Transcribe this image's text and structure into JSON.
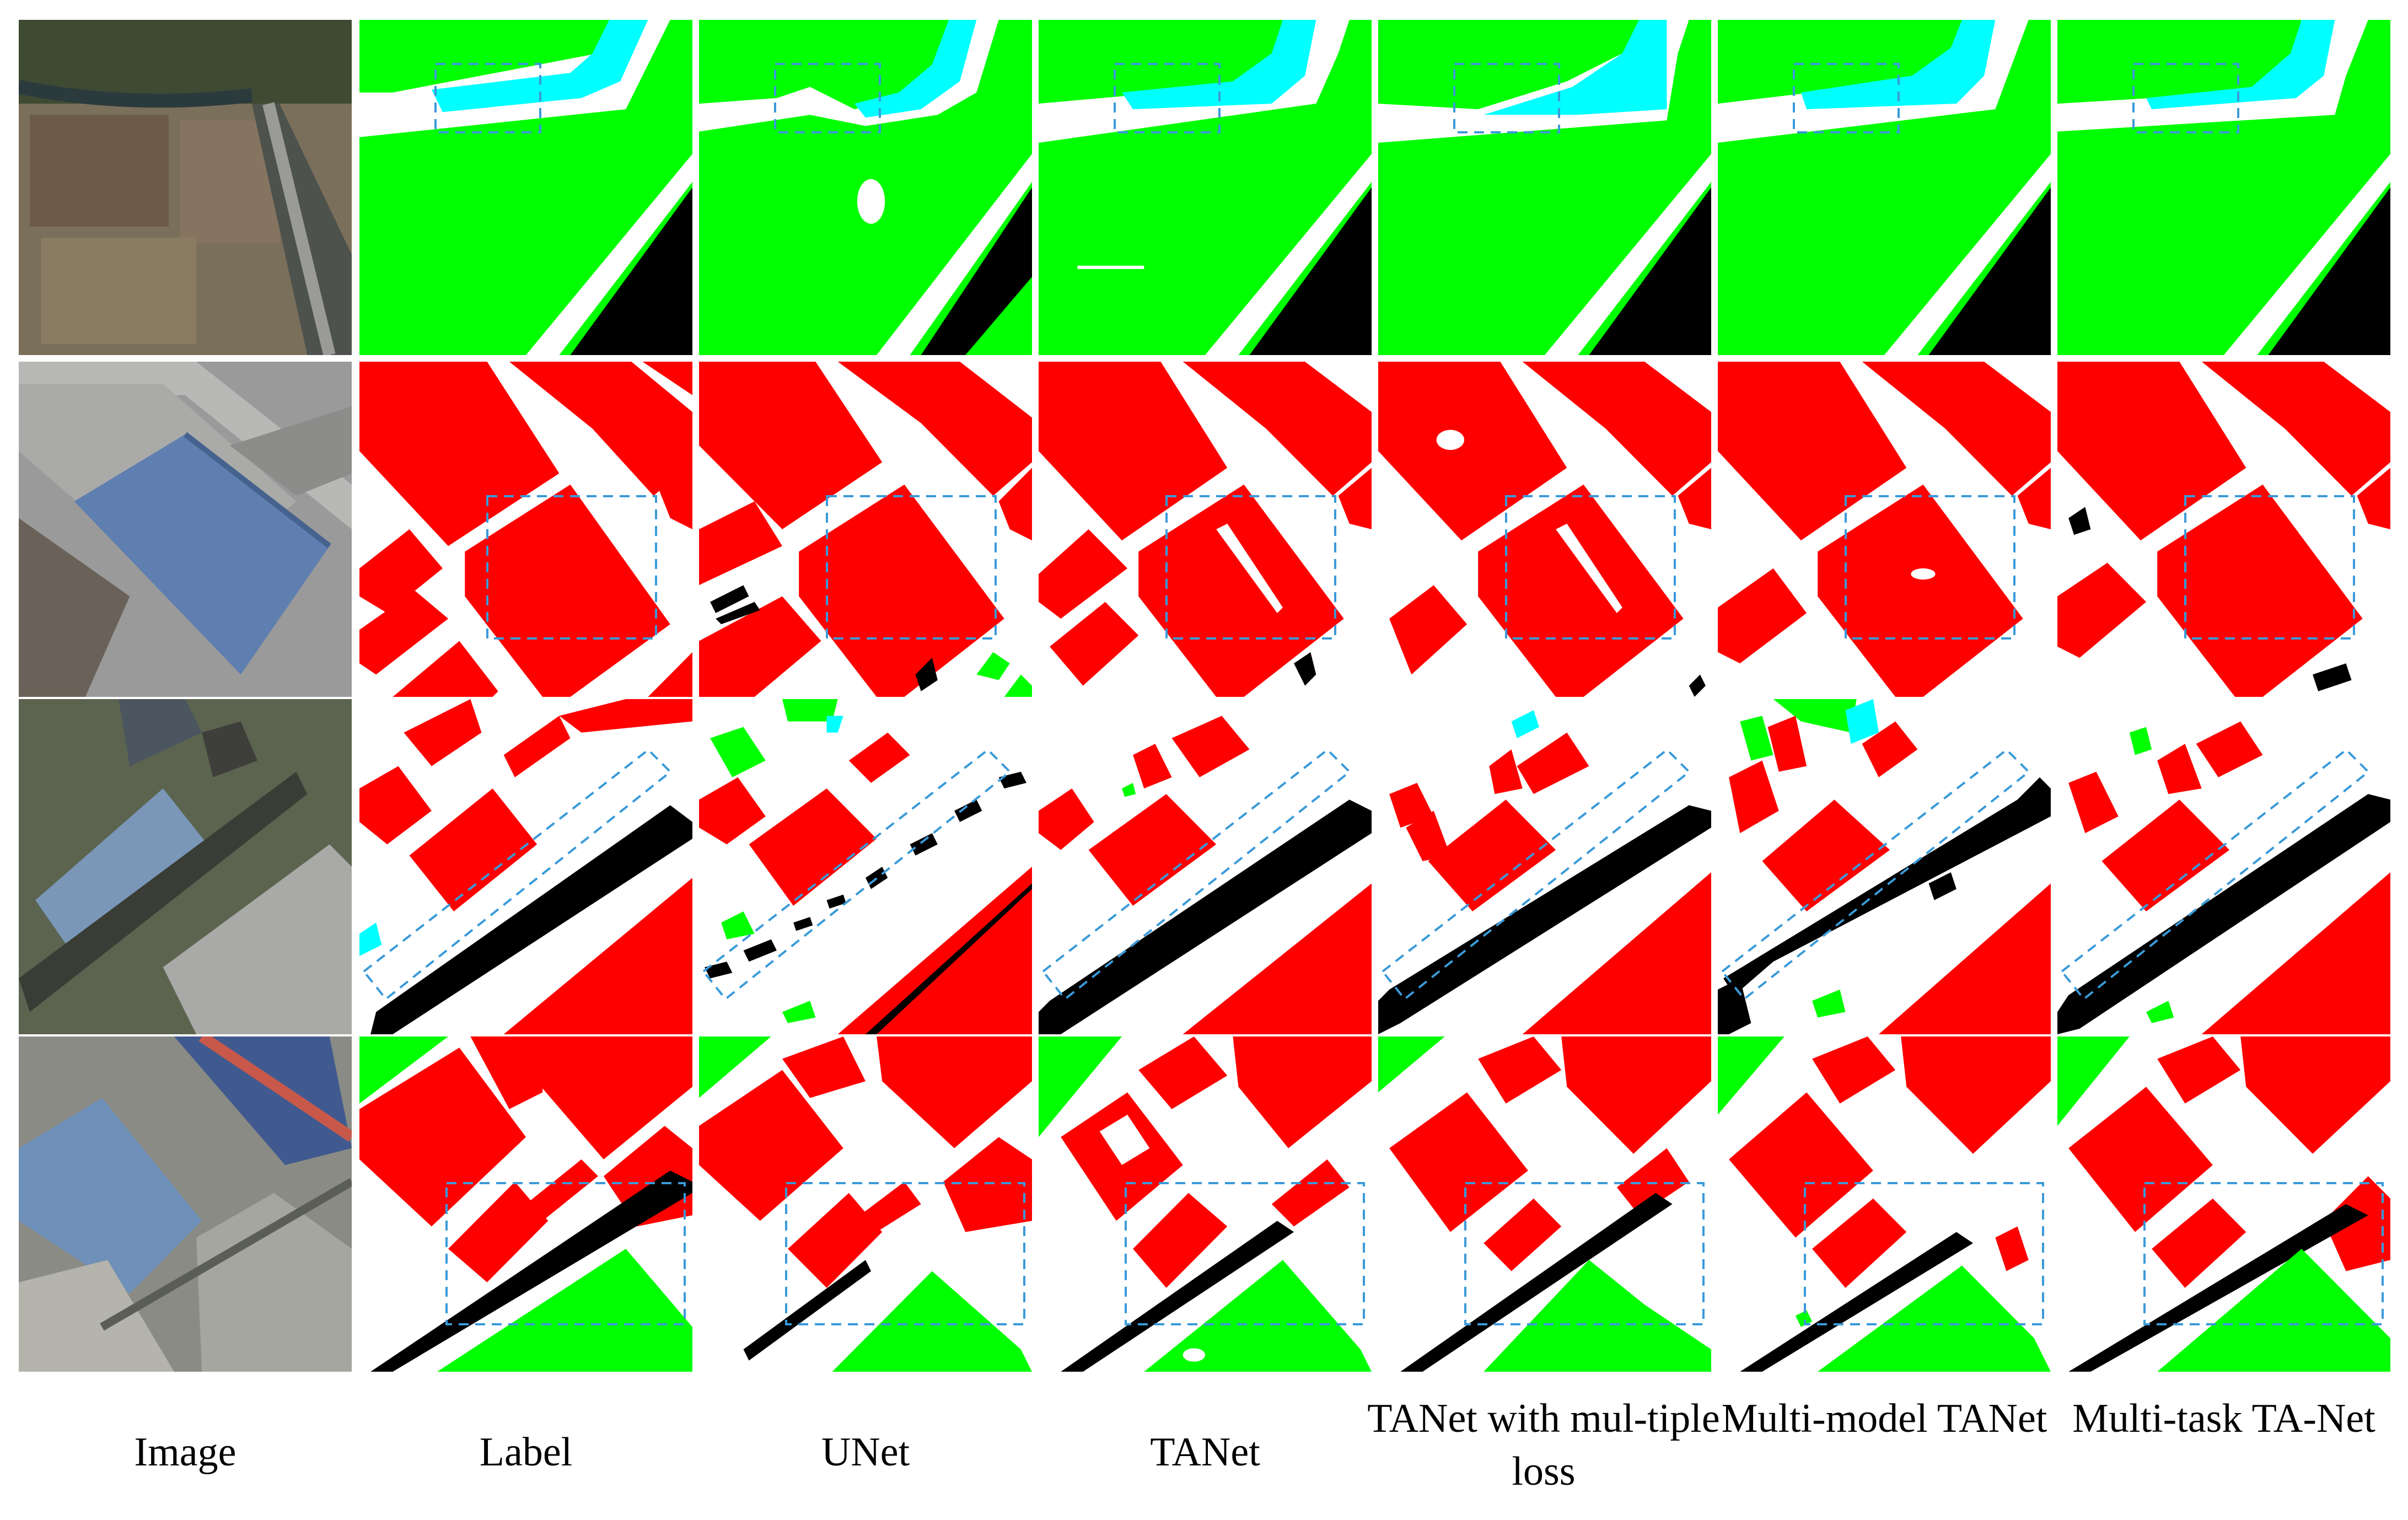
{
  "figure": {
    "columns": [
      {
        "key": "image",
        "label": "Image"
      },
      {
        "key": "label",
        "label": "Label"
      },
      {
        "key": "unet",
        "label": "UNet"
      },
      {
        "key": "tanet",
        "label": "TANet"
      },
      {
        "key": "tanet_multi_loss",
        "label": "TANet with mul-tiple loss"
      },
      {
        "key": "multi_model_tanet",
        "label": "Multi-model TANet"
      },
      {
        "key": "multi_task_tanet",
        "label": "Multi-task TA-Net"
      }
    ],
    "rows": 4,
    "class_colors": {
      "farmland": "#00ff00",
      "building": "#ff0000",
      "road": "#000000",
      "water": "#00ffff",
      "background": "#ffffff"
    },
    "highlight_box_color": "#3a9ad9"
  }
}
